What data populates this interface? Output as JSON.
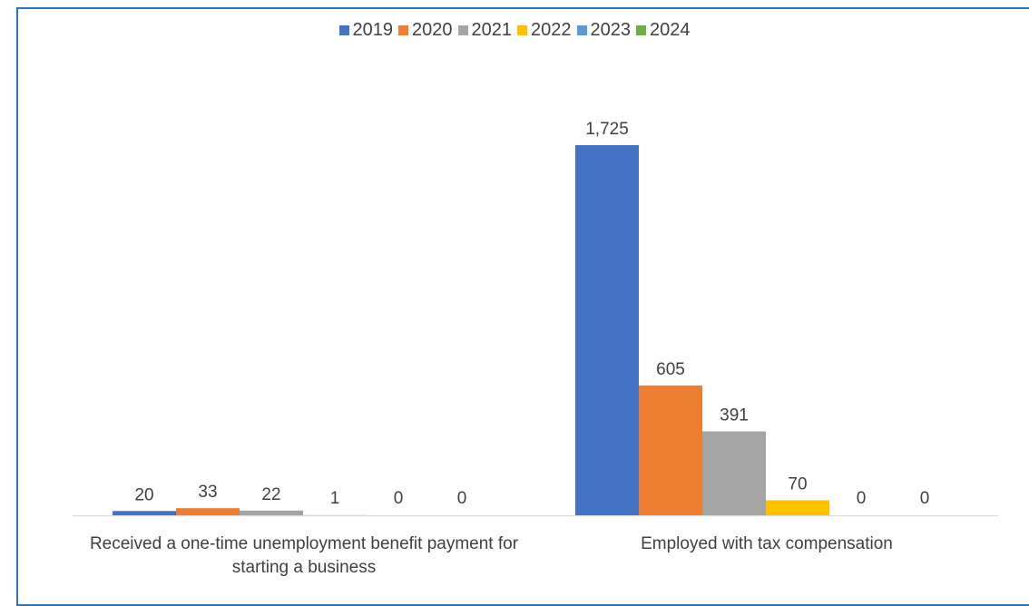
{
  "chart_data": {
    "type": "bar",
    "categories": [
      "Received a one-time unemployment benefit payment for starting a business",
      "Employed with tax compensation"
    ],
    "series": [
      {
        "name": "2019",
        "color": "#4472c4",
        "values": [
          20,
          1725
        ],
        "labels": [
          "20",
          "1,725"
        ]
      },
      {
        "name": "2020",
        "color": "#ed7d31",
        "values": [
          33,
          605
        ],
        "labels": [
          "33",
          "605"
        ]
      },
      {
        "name": "2021",
        "color": "#a5a5a5",
        "values": [
          22,
          391
        ],
        "labels": [
          "22",
          "391"
        ]
      },
      {
        "name": "2022",
        "color": "#ffc000",
        "values": [
          1,
          70
        ],
        "labels": [
          "1",
          "70"
        ]
      },
      {
        "name": "2023",
        "color": "#5b9bd5",
        "values": [
          0,
          0
        ],
        "labels": [
          "0",
          "0"
        ]
      },
      {
        "name": "2024",
        "color": "#70ad47",
        "values": [
          0,
          0
        ],
        "labels": [
          "0",
          "0"
        ]
      }
    ],
    "title": "",
    "xlabel": "",
    "ylabel": "",
    "ylim": [
      0,
      1725
    ],
    "grid": false,
    "legend_position": "top-center",
    "data_labels": true
  }
}
